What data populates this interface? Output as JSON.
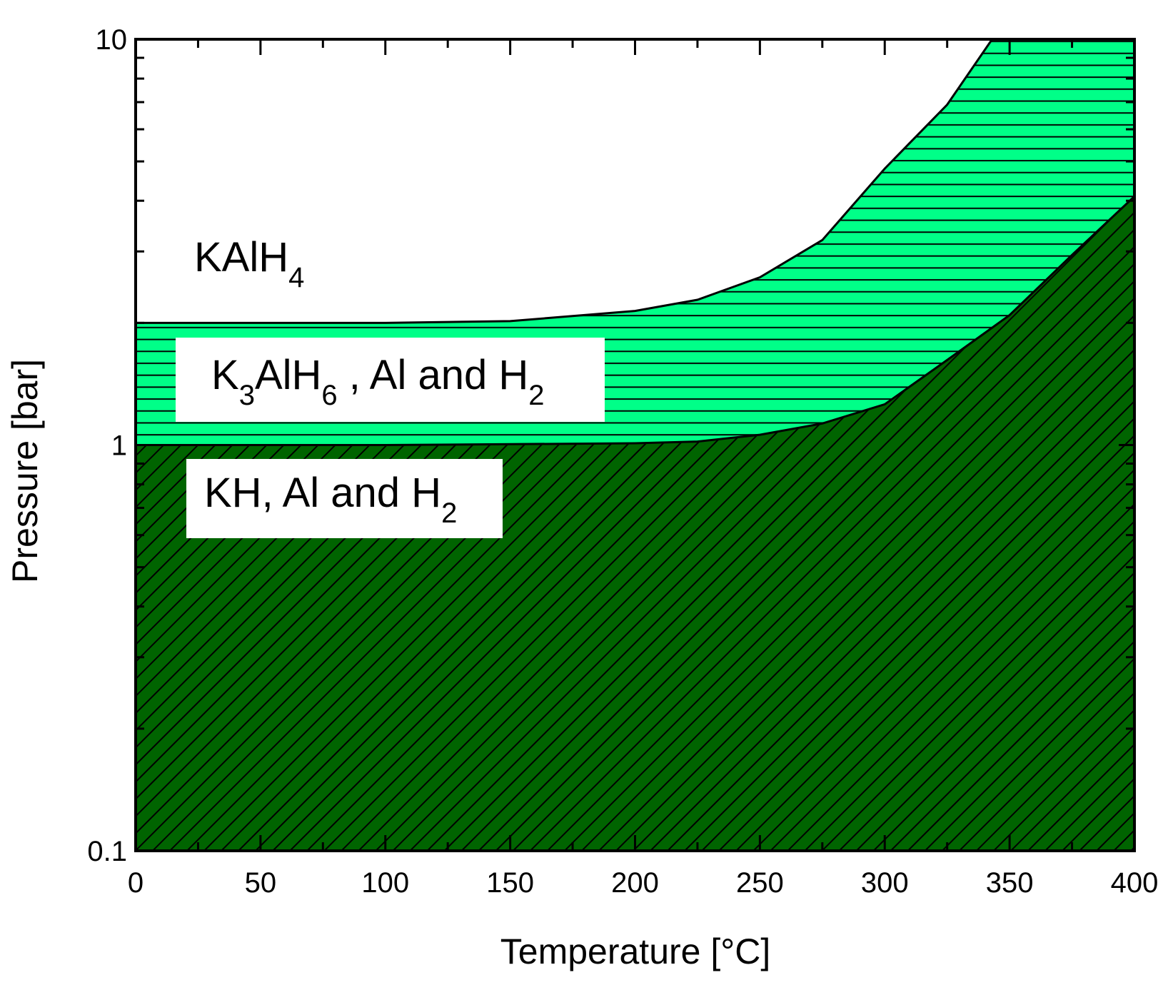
{
  "chart_data": {
    "type": "area",
    "xlabel": "Temperature [°C]",
    "ylabel": "Pressure [bar]",
    "xlim": [
      0,
      400
    ],
    "xticks": [
      0,
      50,
      100,
      150,
      200,
      250,
      300,
      350,
      400
    ],
    "xticks_minor": [
      25,
      75,
      125,
      175,
      225,
      275,
      325,
      375
    ],
    "ylim": [
      0.1,
      10
    ],
    "yticks": [
      0.1,
      1,
      10
    ],
    "yticks_minor": [
      0.2,
      0.3,
      0.4,
      0.5,
      0.6,
      0.7,
      0.8,
      0.9,
      2,
      3,
      4,
      5,
      6,
      7,
      8,
      9
    ],
    "log_y": true,
    "series": [
      {
        "color": "#00ff88",
        "hatch": "horizontal",
        "x": [
          0,
          50,
          100,
          150,
          200,
          225,
          250,
          275,
          300,
          325,
          343
        ],
        "values": [
          2.0,
          2.0,
          2.0,
          2.02,
          2.14,
          2.28,
          2.59,
          3.2,
          4.8,
          6.9,
          10
        ]
      },
      {
        "color": "#006400",
        "hatch": "diagonal",
        "x": [
          0,
          100,
          200,
          225,
          250,
          275,
          300,
          325,
          350,
          375,
          400
        ],
        "values": [
          1.0,
          1.0,
          1.01,
          1.02,
          1.06,
          1.13,
          1.26,
          1.62,
          2.09,
          2.94,
          4.1
        ]
      }
    ],
    "annotations": [
      [
        "KAlH",
        "4"
      ],
      [
        "K",
        "3",
        "AlH",
        "6",
        " , Al and H",
        "2"
      ],
      [
        "KH, Al and H",
        "2"
      ]
    ]
  }
}
